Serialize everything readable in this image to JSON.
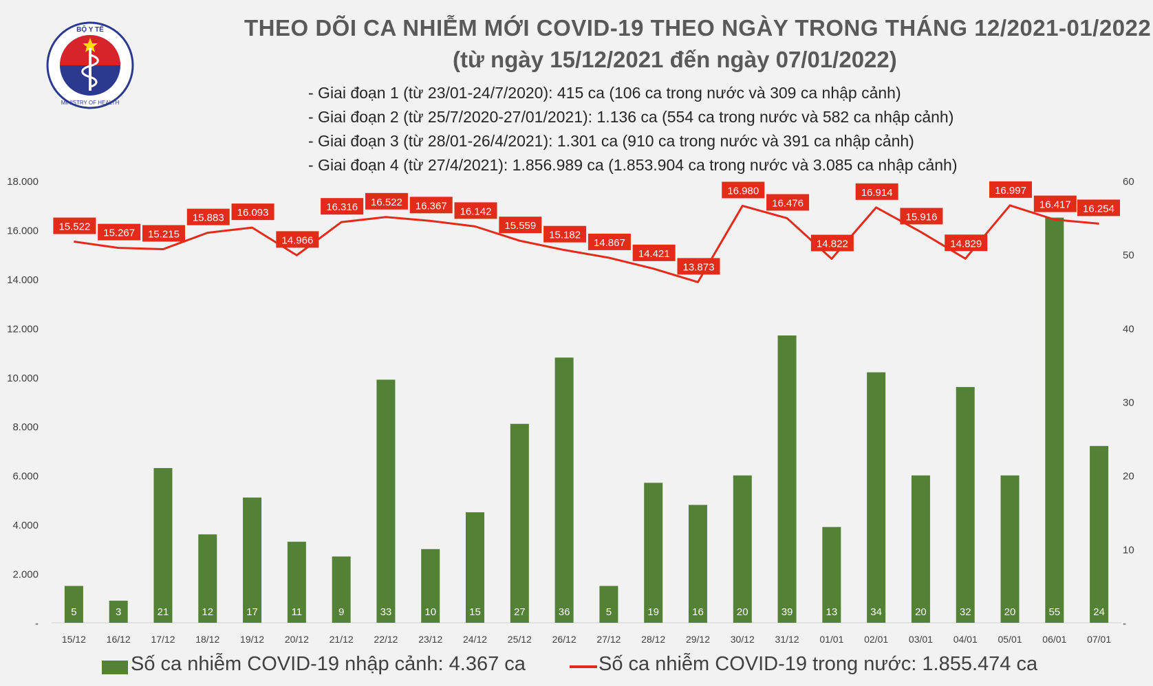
{
  "logo": {
    "top_text": "BỘ Y TẾ",
    "bottom_text": "MINISTRY OF HEALTH"
  },
  "header": {
    "title": "THEO DÕI CA NHIỄM MỚI COVID-19 THEO NGÀY TRONG THÁNG 12/2021-01/2022",
    "subtitle": "(từ ngày 15/12/2021 đến ngày 07/01/2022)",
    "phases": [
      "- Giai đoạn 1 (từ 23/01-24/7/2020): 415 ca (106 ca trong nước và 309 ca nhập cảnh)",
      "- Giai đoạn 2 (từ 25/7/2020-27/01/2021): 1.136 ca (554 ca trong nước và 582 ca nhập cảnh)",
      "- Giai đoạn 3 (từ 28/01-26/4/2021): 1.301 ca (910 ca trong nước và 391 ca nhập cảnh)",
      "- Giai đoạn 4 (từ 27/4/2021): 1.856.989 ca (1.853.904 ca trong nước và 3.085 ca nhập cảnh)"
    ]
  },
  "legend": {
    "bar_label": "Số ca nhiễm COVID-19 nhập cảnh: 4.367 ca",
    "line_label": "Số ca nhiễm COVID-19 trong nước: 1.855.474 ca"
  },
  "colors": {
    "bar": "#538135",
    "line": "#e32b1a",
    "label_box": "#e32b1a",
    "background": "#f2f2f2"
  },
  "chart_data": {
    "type": "bar+line",
    "categories": [
      "15/12",
      "16/12",
      "17/12",
      "18/12",
      "19/12",
      "20/12",
      "21/12",
      "22/12",
      "23/12",
      "24/12",
      "25/12",
      "26/12",
      "27/12",
      "28/12",
      "29/12",
      "30/12",
      "31/12",
      "01/01",
      "02/01",
      "03/01",
      "04/01",
      "05/01",
      "06/01",
      "07/01"
    ],
    "series": [
      {
        "name": "Số ca nhiễm COVID-19 nhập cảnh: 4.367 ca",
        "type": "bar",
        "axis": "right",
        "values": [
          5,
          3,
          21,
          12,
          17,
          11,
          9,
          33,
          10,
          15,
          27,
          36,
          5,
          19,
          16,
          20,
          39,
          13,
          34,
          20,
          32,
          20,
          55,
          24
        ],
        "labels": [
          "5",
          "3",
          "21",
          "12",
          "17",
          "11",
          "9",
          "33",
          "10",
          "15",
          "27",
          "36",
          "5",
          "19",
          "16",
          "20",
          "39",
          "13",
          "34",
          "20",
          "32",
          "20",
          "55",
          "24"
        ]
      },
      {
        "name": "Số ca nhiễm COVID-19 trong nước: 1.855.474 ca",
        "type": "line",
        "axis": "left",
        "values": [
          15522,
          15267,
          15215,
          15883,
          16093,
          14966,
          16316,
          16522,
          16367,
          16142,
          15559,
          15182,
          14867,
          14421,
          13873,
          16980,
          16476,
          14822,
          16914,
          15916,
          14829,
          16997,
          16417,
          16254
        ],
        "labels": [
          "15.522",
          "15.267",
          "15.215",
          "15.883",
          "16.093",
          "14.966",
          "16.316",
          "16.522",
          "16.367",
          "16.142",
          "15.559",
          "15.182",
          "14.867",
          "14.421",
          "13.873",
          "16.980",
          "16.476",
          "14.822",
          "16.914",
          "15.916",
          "14.829",
          "16.997",
          "16.417",
          "16.254"
        ]
      }
    ],
    "left_axis": {
      "ylim": [
        0,
        18000
      ],
      "ticks": [
        "-",
        "2.000",
        "4.000",
        "6.000",
        "8.000",
        "10.000",
        "12.000",
        "14.000",
        "16.000",
        "18.000"
      ]
    },
    "right_axis": {
      "ylim": [
        0,
        60
      ],
      "ticks": [
        "-",
        "10",
        "20",
        "30",
        "40",
        "50",
        "60"
      ]
    },
    "grid": false,
    "legend_position": "bottom"
  }
}
